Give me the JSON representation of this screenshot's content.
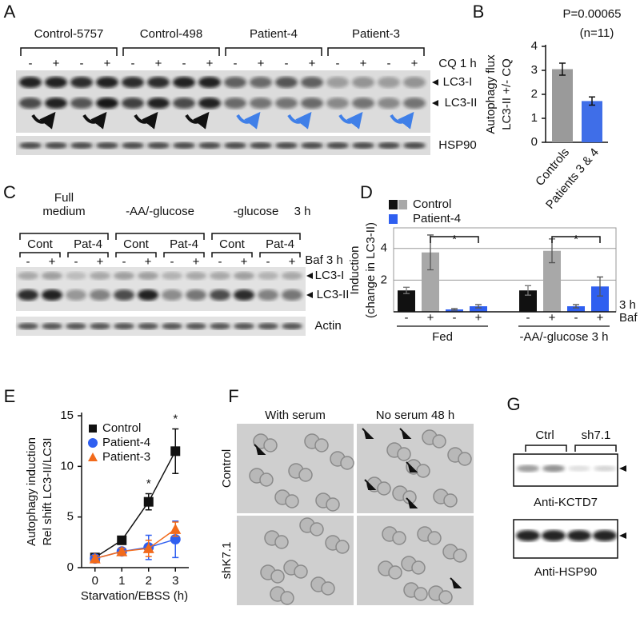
{
  "figure": {
    "panel_labels": [
      "A",
      "B",
      "C",
      "D",
      "E",
      "F",
      "G"
    ],
    "panel_a": {
      "groups": [
        "Control-5757",
        "Control-498",
        "Patient-4",
        "Patient-3"
      ],
      "lane_signs": [
        "-",
        "+",
        "-",
        "+",
        "-",
        "+",
        "-",
        "+",
        "-",
        "+",
        "-",
        "+",
        "-",
        "+",
        "-",
        "+"
      ],
      "treatment": "CQ 1 h",
      "bands": [
        "LC3-I",
        "LC3-II"
      ],
      "loading": "HSP90"
    },
    "panel_c": {
      "conditions": [
        [
          "Full",
          "medium"
        ],
        [
          "-AA/-glucose"
        ],
        [
          "-glucose"
        ]
      ],
      "duration": "3 h",
      "samples": [
        "Cont",
        "Pat-4",
        "Cont",
        "Pat-4",
        "Cont",
        "Pat-4"
      ],
      "lane_signs": [
        "-",
        "+",
        "-",
        "+",
        "-",
        "+",
        "-",
        "+",
        "-",
        "+",
        "-",
        "+"
      ],
      "treatment": "Baf 3 h",
      "bands": [
        "LC3-I",
        "LC3-II"
      ],
      "loading": "Actin"
    },
    "panel_f": {
      "columns": [
        "With serum",
        "No serum 48 h"
      ],
      "rows": [
        "Control",
        "shK7.1"
      ]
    },
    "panel_g": {
      "groups": [
        "Ctrl",
        "sh7.1"
      ],
      "blots": [
        "Anti-KCTD7",
        "Anti-HSP90"
      ]
    }
  },
  "chart_data": [
    {
      "type": "bar",
      "categories": [
        "Controls",
        "Patients 3 & 4"
      ],
      "values": [
        3.05,
        1.72
      ],
      "errors": [
        0.25,
        0.17
      ],
      "colors": [
        "#9a9a9a",
        "#3f6ee8"
      ],
      "ylim": [
        0,
        4
      ],
      "yticks": [
        0,
        1,
        2,
        3,
        4
      ],
      "grid": false,
      "y_label": [
        "Autophagy flux",
        "LC3-II +/- CQ"
      ],
      "annotations": [
        "P=0.00065",
        "(n=11)"
      ]
    },
    {
      "type": "bar",
      "categories": [
        "-",
        "+",
        "-",
        "+",
        "-",
        "+",
        "-",
        "+"
      ],
      "values": [
        1.35,
        3.75,
        0.15,
        0.35,
        1.35,
        3.85,
        0.35,
        1.6
      ],
      "errors": [
        0.2,
        1.1,
        0.05,
        0.1,
        0.3,
        0.75,
        0.1,
        0.6
      ],
      "colors": [
        "#111111",
        "#a8a8a8",
        "#2f5ff0",
        "#2f5ff0",
        "#111111",
        "#a8a8a8",
        "#2f5ff0",
        "#2f5ff0"
      ],
      "groups": [
        "Fed",
        "-AA/-glucose 3 h"
      ],
      "legend": [
        {
          "name": "Control",
          "colors": [
            "#111111",
            "#a8a8a8"
          ]
        },
        {
          "name": "Patient-4",
          "colors": [
            "#2f5ff0"
          ]
        }
      ],
      "ylim": [
        0,
        5.3
      ],
      "yticks": [
        2,
        4
      ],
      "grid": true,
      "y_label": [
        "Induction",
        "(change in LC3-II)"
      ],
      "axis_notes": [
        "3 h",
        "Baf"
      ],
      "annotations": [
        "*",
        "*"
      ]
    },
    {
      "type": "line",
      "x": [
        0,
        1,
        2,
        3
      ],
      "xlim": [
        -0.5,
        3.5
      ],
      "xticks": [
        0,
        1,
        2,
        3
      ],
      "ylim": [
        0,
        15
      ],
      "yticks": [
        0,
        5,
        10,
        15
      ],
      "x_label": "Starvation/EBSS (h)",
      "y_label": [
        "Autophagy induction",
        "Rel shift LC3-II/LC3I"
      ],
      "series": [
        {
          "name": "Control",
          "color": "#111111",
          "marker": "square",
          "values": [
            1.0,
            2.7,
            6.5,
            11.5
          ],
          "errors": [
            0.3,
            0.3,
            0.8,
            2.2
          ]
        },
        {
          "name": "Patient-4",
          "color": "#2f5ff0",
          "marker": "circle",
          "values": [
            0.9,
            1.6,
            2.0,
            2.8
          ],
          "errors": [
            0.3,
            0.3,
            1.2,
            1.8
          ]
        },
        {
          "name": "Patient-3",
          "color": "#f26a1b",
          "marker": "triangle",
          "values": [
            0.9,
            1.6,
            1.9,
            3.8
          ],
          "errors": [
            0.3,
            0.3,
            0.8,
            0.7
          ]
        }
      ],
      "annotations": [
        "*",
        "*"
      ]
    }
  ]
}
